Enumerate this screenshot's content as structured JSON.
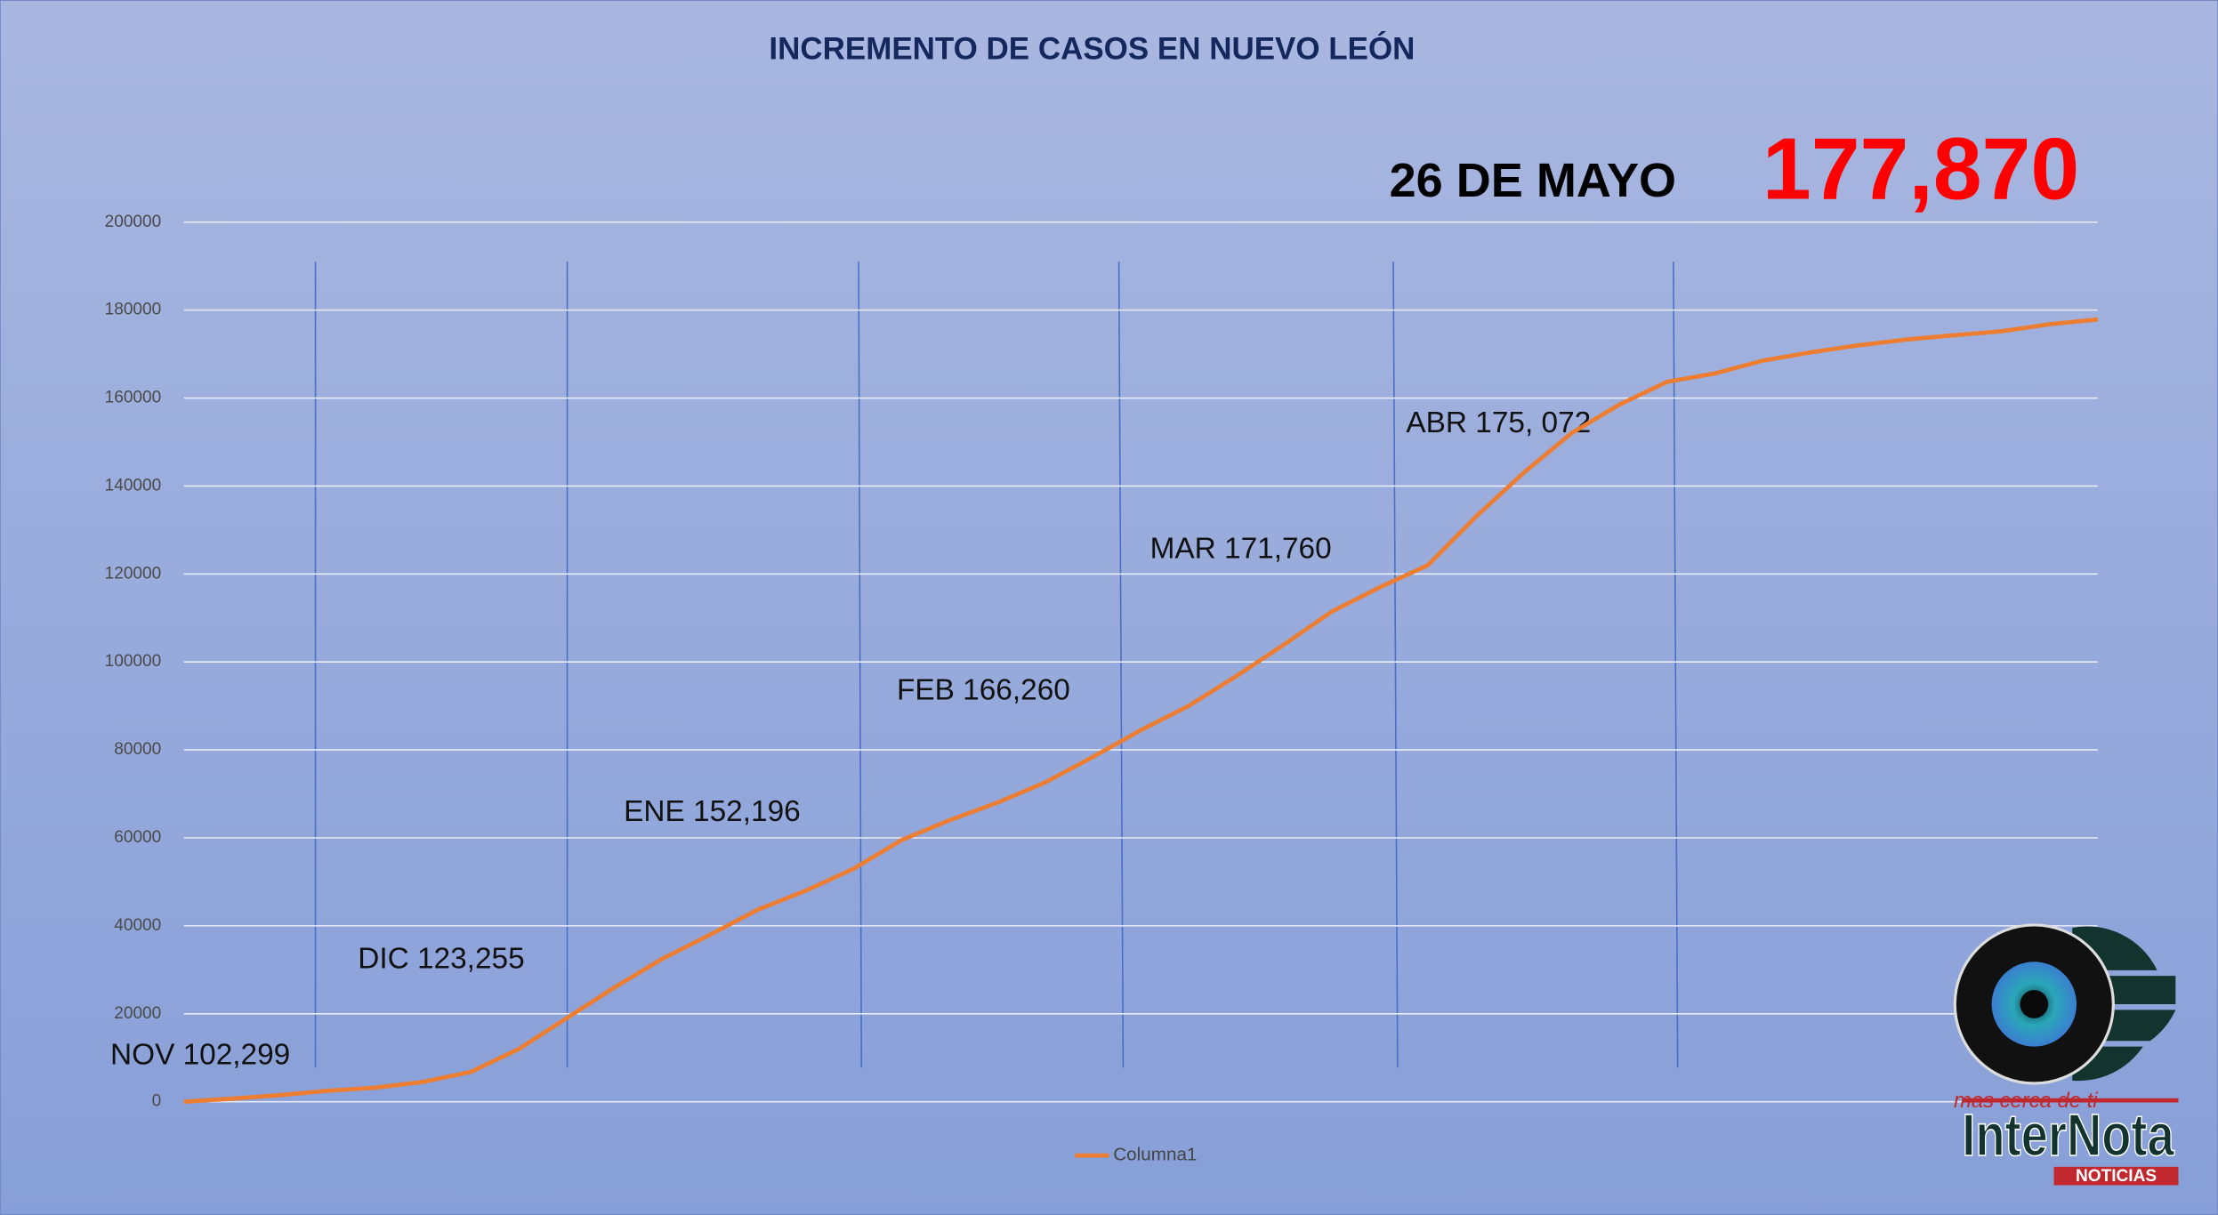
{
  "chart_data": {
    "type": "line",
    "title": "INCREMENTO DE CASOS EN NUEVO LEÓN",
    "headline": {
      "label": "26 DE MAYO",
      "value": "177,870"
    },
    "annotations": [
      "NOV 102,299",
      "DIC 123,255",
      "ENE 152,196",
      "FEB 166,260",
      "MAR 171,760",
      "ABR 175, 072"
    ],
    "categories": [
      null,
      null,
      null,
      null,
      null,
      null,
      null,
      null,
      null,
      null,
      null,
      null,
      null,
      null,
      null,
      null,
      null,
      null,
      null,
      null,
      null,
      null,
      null,
      null,
      null,
      null,
      null,
      null,
      null,
      null,
      null,
      null,
      null,
      null,
      null,
      null,
      null,
      null,
      null,
      null,
      null
    ],
    "series": [
      {
        "name": "Columna1",
        "color": "#ed7d31",
        "values": [
          0,
          700,
          1500,
          2500,
          3200,
          4500,
          6800,
          12000,
          19000,
          26000,
          32500,
          38000,
          43700,
          48000,
          53000,
          59500,
          64000,
          68000,
          72600,
          78400,
          84500,
          90000,
          96800,
          104000,
          111500,
          117000,
          122000,
          133000,
          143000,
          152000,
          158500,
          163700,
          165600,
          168500,
          170400,
          172000,
          173300,
          174300,
          175200,
          176800,
          177870
        ]
      }
    ],
    "ylim": [
      0,
      200000
    ],
    "yticks": [
      0,
      20000,
      40000,
      60000,
      80000,
      100000,
      120000,
      140000,
      160000,
      180000,
      200000
    ],
    "grid": true,
    "legend": "bottom"
  },
  "logo": {
    "tagline": "mas cerca de ti",
    "name": "InterNota",
    "sub": "NOTICIAS"
  }
}
